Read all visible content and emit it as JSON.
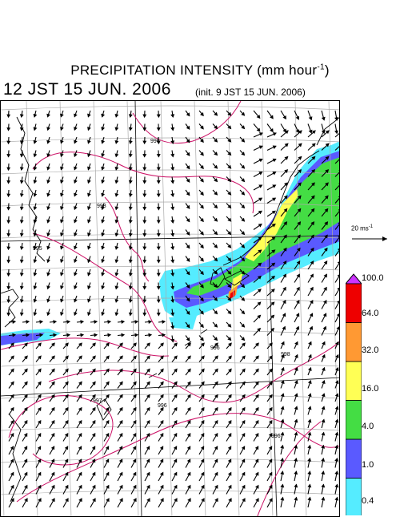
{
  "title_main": "PRECIPITATION INTENSITY (mm hour",
  "title_exp": "-1",
  "title_close": ")",
  "valid_time": "12 JST 15 JUN. 2006",
  "init_time": "(init. 9 JST 15 JUN. 2006)",
  "reference_vector": {
    "label": "20 ms",
    "exp": "-1"
  },
  "colorbar": {
    "levels": [
      "0.4",
      "1.0",
      "4.0",
      "16.0",
      "32.0",
      "64.0",
      "100.0"
    ],
    "colors": [
      "#55ecff",
      "#5a5aff",
      "#44dd44",
      "#ffff55",
      "#ff9933",
      "#ee0000",
      "#cc33ff"
    ]
  },
  "isobar_labels": [
    "996",
    "998",
    "995",
    "996",
    "998",
    "997",
    "996",
    "996"
  ],
  "colors": {
    "isobar": "#cc1166",
    "grid": "#aaaaaa",
    "coast": "#000000"
  }
}
